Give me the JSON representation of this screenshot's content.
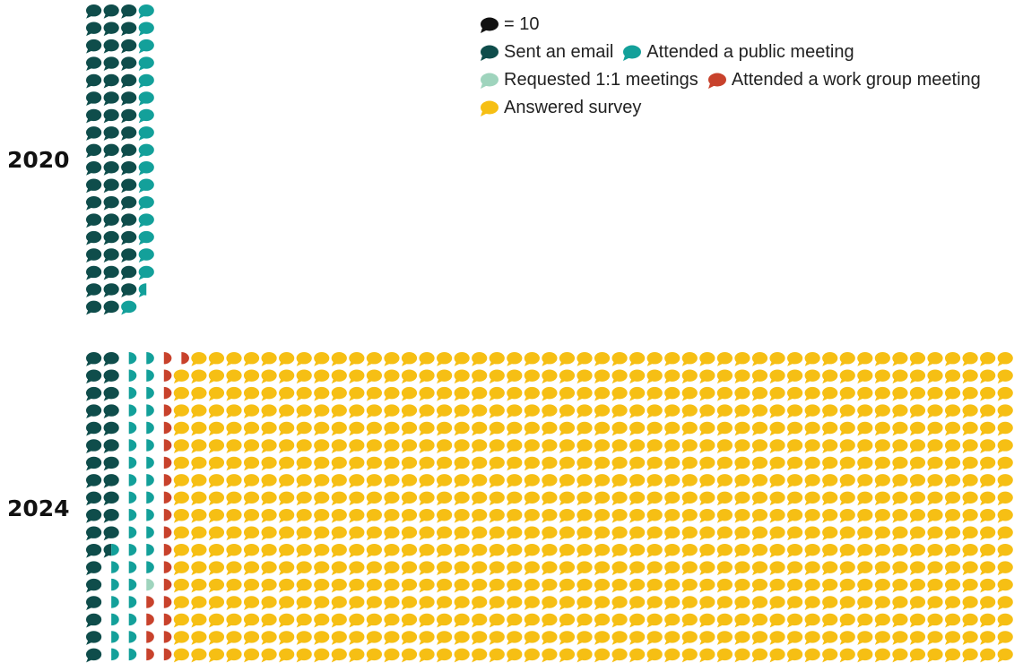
{
  "chart_data": {
    "type": "waffle",
    "unit_note": "= 10",
    "unit_value": 10,
    "categories": [
      {
        "key": "email",
        "name": "Sent an email",
        "color": "#0f4d4b"
      },
      {
        "key": "public",
        "name": "Attended a public meeting",
        "color": "#13a09a"
      },
      {
        "key": "oneone",
        "name": "Requested 1:1 meetings",
        "color": "#9fd4bd"
      },
      {
        "key": "workgroup",
        "name": "Attended a work group meeting",
        "color": "#c8422c"
      },
      {
        "key": "survey",
        "name": "Answered survey",
        "color": "#f6bf14"
      }
    ],
    "groups": [
      {
        "label": "2020",
        "rows": 18,
        "counts": {
          "email": 53,
          "public": 17.5,
          "oneone": 0,
          "workgroup": 0,
          "survey": 0
        }
      },
      {
        "label": "2024",
        "rows": 18,
        "counts": {
          "email": 29.5,
          "public": 38,
          "oneone": 1,
          "workgroup": 22.5,
          "survey": 986
        }
      }
    ]
  }
}
